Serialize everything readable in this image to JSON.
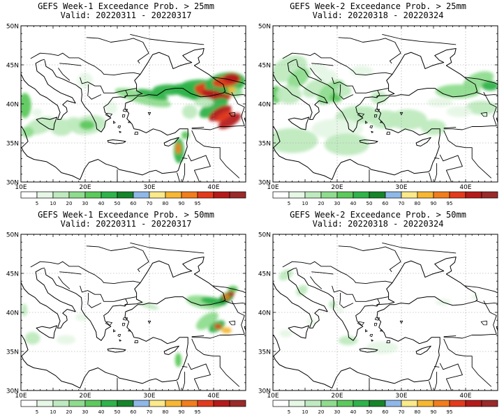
{
  "panels": [
    {
      "title": "GEFS Week-1 Exceedance Prob. > 25mm",
      "valid": "Valid: 20220311 - 20220317"
    },
    {
      "title": "GEFS Week-2 Exceedance Prob. > 25mm",
      "valid": "Valid: 20220318 - 20220324"
    },
    {
      "title": "GEFS Week-1 Exceedance Prob. > 50mm",
      "valid": "Valid: 20220311 - 20220317"
    },
    {
      "title": "GEFS Week-2 Exceedance Prob. > 50mm",
      "valid": "Valid: 20220318 - 20220324"
    }
  ],
  "map": {
    "lat_labels": [
      "50N",
      "45N",
      "40N",
      "35N",
      "30N"
    ],
    "lon_labels": [
      "10E",
      "20E",
      "30E",
      "40E"
    ]
  },
  "colorbar": {
    "labels": [
      "5",
      "10",
      "20",
      "30",
      "40",
      "50",
      "60",
      "70",
      "80",
      "90",
      "95"
    ],
    "colors": [
      "#ffffff",
      "#e6f7e6",
      "#bfeabf",
      "#8fdc8f",
      "#5cc95c",
      "#2fb34a",
      "#15852a",
      "#8fb8e8",
      "#fbe98a",
      "#f7b733",
      "#f27d1c",
      "#e33a1d",
      "#b51a1a",
      "#9b2a2a"
    ]
  }
}
